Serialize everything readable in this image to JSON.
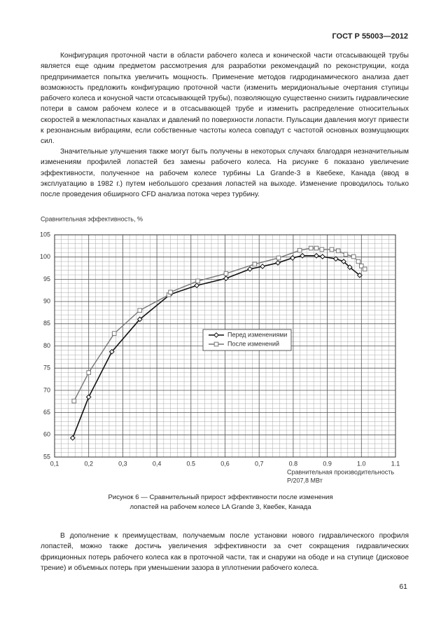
{
  "header": {
    "standard": "ГОСТ Р 55003—2012"
  },
  "paragraphs": [
    "Конфигурация проточной части в области рабочего колеса и конической части отсасывающей трубы является еще одним предметом рассмотрения для разработки рекомендаций по реконструкции, когда предпринимается попытка увеличить мощность. Применение методов гидродинамического анализа дает возможность предложить конфигурацию проточной части (изменить меридиональные очертания ступицы рабочего колеса и конусной части отсасывающей трубы), позволяющую существенно снизить гидравлические потери в самом рабочем колесе и в отсасывающей трубе и изменить распределение относительных скоростей в межлопастных каналах и давлений по поверхности лопасти. Пульсации давления могут привести к резонансным вибрациям, если собственные частоты колеса совпадут с частотой основных возмущающих сил.",
    "Значительные улучшения также могут быть получены в некоторых случаях благодаря незначительным изменениям профилей лопастей без замены рабочего колеса. На рисунке 6 показано увеличение эффективности, полученное на рабочем колесе турбины La Grande-3 в Квебеке, Канада (ввод в эксплуатацию в 1982 г.) путем небольшого срезания лопастей на выходе. Изменение проводилось только после проведения обширного CFD анализа потока через турбину."
  ],
  "chart_data": {
    "type": "line",
    "y_label": "Сравнительная эффективность, %",
    "x_label": [
      "Сравнительная производительность",
      "P/207,8 МВт"
    ],
    "xlim": [
      0.1,
      1.1
    ],
    "xticks": [
      {
        "value": 0.1,
        "label": "0,1"
      },
      {
        "value": 0.2,
        "label": "0,2"
      },
      {
        "value": 0.3,
        "label": "0,3"
      },
      {
        "value": 0.4,
        "label": "0,4"
      },
      0.5,
      {
        "value": 0.6,
        "label": "0,6"
      },
      {
        "value": 0.7,
        "label": "0,7"
      },
      0.8,
      0.9,
      {
        "value": 1.0,
        "label": "1.0"
      },
      1.1
    ],
    "ylim": [
      55,
      105
    ],
    "yticks": [
      55,
      60,
      65,
      70,
      75,
      80,
      85,
      90,
      95,
      100,
      105
    ],
    "grid": true,
    "series": [
      {
        "name": "Перед изменениями",
        "color": "#111111",
        "marker": "diamond",
        "x": [
          0.153,
          0.2,
          0.268,
          0.35,
          0.439,
          0.517,
          0.603,
          0.673,
          0.71,
          0.755,
          0.798,
          0.827,
          0.868,
          0.886,
          0.925,
          0.948,
          0.966,
          0.995
        ],
        "values": [
          59.3,
          68.5,
          78.7,
          86,
          91.6,
          93.6,
          95.2,
          97.3,
          97.9,
          98.7,
          99.8,
          100.3,
          100.3,
          100.1,
          99.6,
          99,
          97.7,
          95.9
        ]
      },
      {
        "name": "После изменений",
        "color": "#777777",
        "marker": "square",
        "x": [
          0.157,
          0.2,
          0.275,
          0.35,
          0.435,
          0.44,
          0.52,
          0.603,
          0.687,
          0.757,
          0.819,
          0.852,
          0.868,
          0.884,
          0.913,
          0.932,
          0.954,
          0.977,
          0.991,
          1.0,
          1.01
        ],
        "values": [
          67.6,
          74,
          82.8,
          88,
          91.5,
          92.1,
          94.6,
          96.3,
          98.4,
          99.8,
          101.5,
          102,
          102,
          101.7,
          101.7,
          101.4,
          100.6,
          100.1,
          99,
          98,
          97.3
        ]
      }
    ]
  },
  "figure": {
    "caption": "Рисунок 6 — Сравнительный прирост эффективности после изменения лопастей на рабочем колесе LA Grande 3, Квебек, Канада"
  },
  "paragraphs_after": [
    "В дополнение к преимуществам, получаемым после установки нового гидравлического профиля лопастей, можно также достичь увеличения эффективности за счет сокращения гидравлических фрикционных потерь рабочего колеса как в проточной части, так и снаружи на ободе и на ступице (дисковое трение) и объемных потерь при уменьшении зазора в уплотнении рабочего колеса."
  ],
  "footer": {
    "page_number": "61"
  }
}
